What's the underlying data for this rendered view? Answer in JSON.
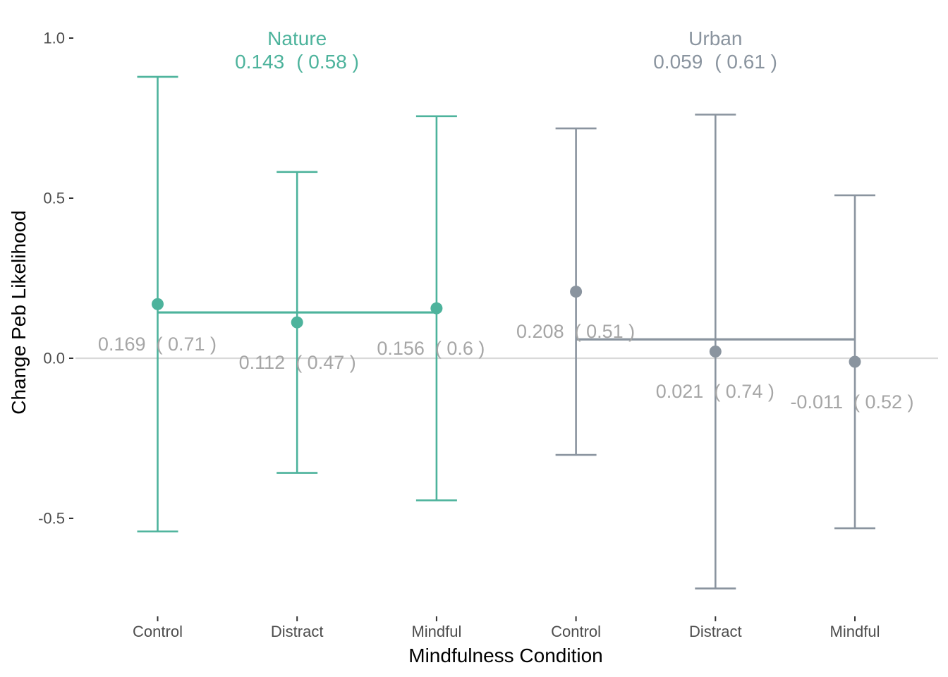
{
  "chart_data": {
    "type": "errorbar",
    "xlabel": "Mindfulness Condition",
    "ylabel": "Change Peb Likelihood",
    "ylim": [
      -0.78,
      1.05
    ],
    "yticks": [
      1.0,
      0.5,
      0.0,
      -0.5
    ],
    "ytick_labels": [
      "1.0",
      "0.5",
      "0.0",
      "-0.5"
    ],
    "reference_line": 0.0,
    "categories": [
      "Control",
      "Distract",
      "Mindful",
      "Control",
      "Distract",
      "Mindful"
    ],
    "groups": [
      {
        "name": "Nature",
        "mean_label": "0.143",
        "sd_label": "( 0.58 )",
        "mean": 0.143,
        "color": "#4db39c",
        "points": [
          {
            "condition": "Control",
            "mean": 0.169,
            "lower": -0.541,
            "upper": 0.879,
            "mean_label": "0.169",
            "sd_label": "( 0.71 )"
          },
          {
            "condition": "Distract",
            "mean": 0.112,
            "lower": -0.358,
            "upper": 0.582,
            "mean_label": "0.112",
            "sd_label": "( 0.47 )"
          },
          {
            "condition": "Mindful",
            "mean": 0.156,
            "lower": -0.444,
            "upper": 0.756,
            "mean_label": "0.156",
            "sd_label": "( 0.6 )"
          }
        ]
      },
      {
        "name": "Urban",
        "mean_label": "0.059",
        "sd_label": "( 0.61 )",
        "mean": 0.059,
        "color": "#8a949f",
        "points": [
          {
            "condition": "Control",
            "mean": 0.208,
            "lower": -0.302,
            "upper": 0.718,
            "mean_label": "0.208",
            "sd_label": "( 0.51 )"
          },
          {
            "condition": "Distract",
            "mean": 0.021,
            "lower": -0.719,
            "upper": 0.761,
            "mean_label": "0.021",
            "sd_label": "( 0.74 )"
          },
          {
            "condition": "Mindful",
            "mean": -0.011,
            "lower": -0.531,
            "upper": 0.509,
            "mean_label": "-0.011",
            "sd_label": "( 0.52 )"
          }
        ]
      }
    ]
  }
}
